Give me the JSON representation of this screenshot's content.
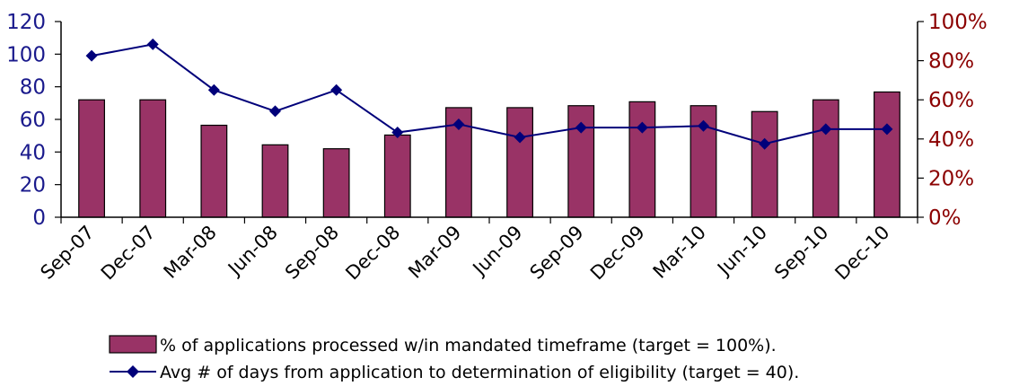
{
  "chart_data": {
    "type": "bar",
    "title": "",
    "categories": [
      "Sep-07",
      "Dec-07",
      "Mar-08",
      "Jun-08",
      "Sep-08",
      "Dec-08",
      "Mar-09",
      "Jun-09",
      "Sep-09",
      "Dec-09",
      "Mar-10",
      "Jun-10",
      "Sep-10",
      "Dec-10"
    ],
    "series": [
      {
        "name": "% of applications processed w/in mandated timeframe (target = 100%).",
        "kind": "bar",
        "axis": "right",
        "color": "#993366",
        "values": [
          60,
          60,
          47,
          37,
          35,
          42,
          56,
          56,
          57,
          59,
          57,
          54,
          60,
          64
        ]
      },
      {
        "name": "Avg # of days from application to determination of eligibility (target = 40).",
        "kind": "line",
        "axis": "left",
        "color": "#00007a",
        "marker": "diamond",
        "values": [
          99,
          106,
          78,
          65,
          78,
          52,
          57,
          49,
          55,
          55,
          56,
          45,
          54,
          54
        ]
      }
    ],
    "y_left": {
      "ylim": [
        0,
        120
      ],
      "ticks": [
        "0",
        "20",
        "40",
        "60",
        "80",
        "100",
        "120"
      ],
      "color": "#1a1a8c"
    },
    "y_right": {
      "ylim": [
        0,
        100
      ],
      "ticks": [
        "0%",
        "20%",
        "40%",
        "60%",
        "80%",
        "100%"
      ],
      "color": "#8b0000"
    },
    "grid": false,
    "legend_position": "bottom"
  }
}
